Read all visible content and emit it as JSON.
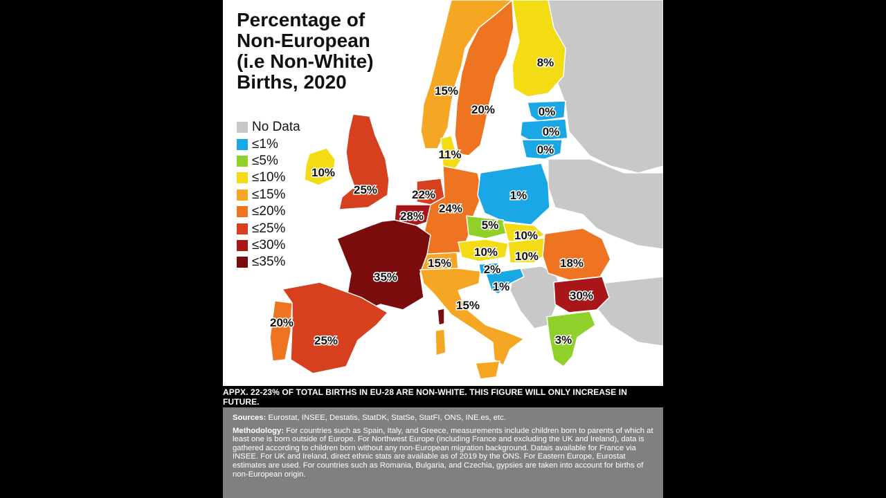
{
  "map": {
    "title": "Percentage of\nNon-European\n(i.e Non-White)\nBirths, 2020",
    "legend": [
      {
        "label": "No Data",
        "color": "#c8c8c8"
      },
      {
        "label": "≤1%",
        "color": "#1aa7e6"
      },
      {
        "label": "≤5%",
        "color": "#8fd12a"
      },
      {
        "label": "≤10%",
        "color": "#f3dc13"
      },
      {
        "label": "≤15%",
        "color": "#f5a623"
      },
      {
        "label": "≤20%",
        "color": "#ef7422"
      },
      {
        "label": "≤25%",
        "color": "#d6401f"
      },
      {
        "label": "≤30%",
        "color": "#a8161a"
      },
      {
        "label": "≤35%",
        "color": "#7b0c0d"
      }
    ],
    "regions": [
      {
        "id": "finland",
        "value": "8%"
      },
      {
        "id": "norway",
        "value": "15%"
      },
      {
        "id": "sweden",
        "value": "20%"
      },
      {
        "id": "estonia",
        "value": "0%"
      },
      {
        "id": "latvia",
        "value": "0%"
      },
      {
        "id": "lithuania",
        "value": "0%"
      },
      {
        "id": "denmark",
        "value": "11%"
      },
      {
        "id": "ireland",
        "value": "10%"
      },
      {
        "id": "uk",
        "value": "25%"
      },
      {
        "id": "netherlands",
        "value": "22%"
      },
      {
        "id": "belgium",
        "value": "28%"
      },
      {
        "id": "germany",
        "value": "24%"
      },
      {
        "id": "poland",
        "value": "1%"
      },
      {
        "id": "czechia",
        "value": "5%"
      },
      {
        "id": "slovakia",
        "value": "10%"
      },
      {
        "id": "austria",
        "value": "10%"
      },
      {
        "id": "hungary",
        "value": "10%"
      },
      {
        "id": "romania",
        "value": "18%"
      },
      {
        "id": "switzerland",
        "value": "15%"
      },
      {
        "id": "slovenia",
        "value": "2%"
      },
      {
        "id": "croatia",
        "value": "1%"
      },
      {
        "id": "bulgaria",
        "value": "30%"
      },
      {
        "id": "france",
        "value": "35%"
      },
      {
        "id": "italy",
        "value": "15%"
      },
      {
        "id": "portugal",
        "value": "20%"
      },
      {
        "id": "spain",
        "value": "25%"
      },
      {
        "id": "greece",
        "value": "3%"
      }
    ]
  },
  "banner": "APPX. 22-23% OF TOTAL BIRTHS IN EU-28 ARE NON-WHITE. THIS FIGURE WILL ONLY INCREASE IN FUTURE.",
  "sources": {
    "heading": "Sources:",
    "text": "Eurostat, INSEE, Destatis, StatDK, StatSe, StatFI, ONS, INE.es, etc."
  },
  "methodology": {
    "heading": "Methodology:",
    "text": "For countries such as Spain, Italy, and Greece, measurements include children born to parents of which at least one is born outside of Europe. For Northwest Europe (including France and excluding the UK and Ireland), data is gathered according to children born without any non-European migration background. Datais available for France via INSEE. For UK and Ireland, direct ethnic stats are available as of 2019 by the ONS. For Eastern Europe, Eurostat estimates are used. For countries such as Romania, Bulgaria, and Czechia, gypsies are taken into account for births of non-European origin."
  }
}
